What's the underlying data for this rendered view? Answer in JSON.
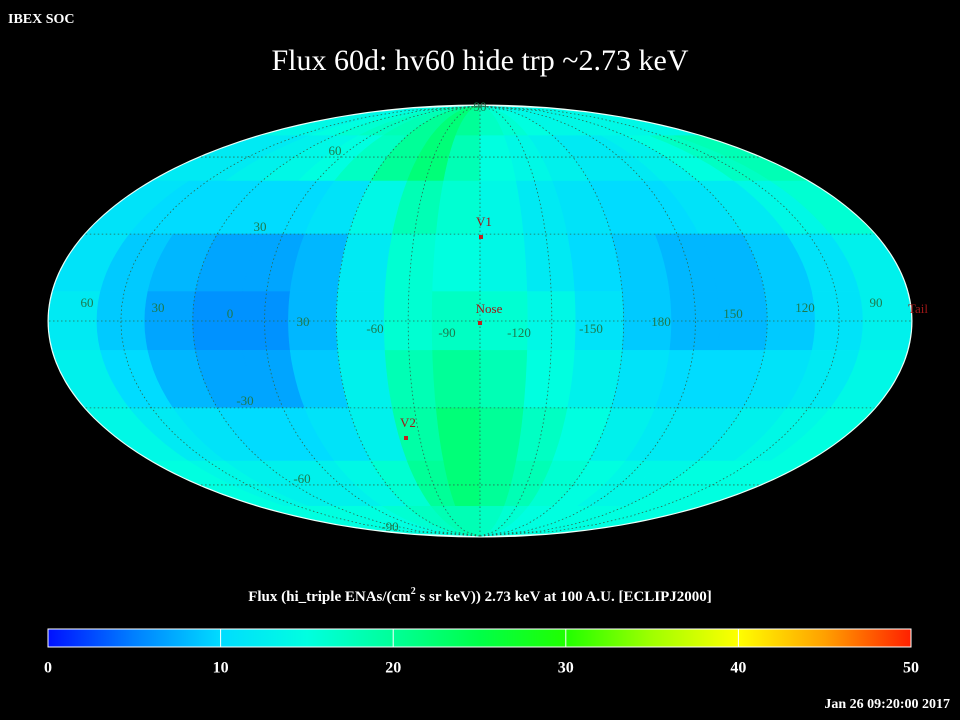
{
  "header": "IBEX SOC",
  "chart_data": {
    "type": "mollweide-map",
    "title": "Flux   60d: hv60 hide trp ~2.73 keV",
    "values": [
      [
        14,
        14,
        15,
        16,
        17,
        18,
        20,
        22,
        20,
        17,
        16,
        15,
        14,
        14,
        14,
        14,
        14,
        14
      ],
      [
        12,
        12,
        13,
        14,
        15,
        17,
        20,
        22,
        18,
        15,
        14,
        13,
        12,
        12,
        13,
        15,
        17,
        18
      ],
      [
        11,
        10,
        10,
        10,
        10,
        11,
        14,
        18,
        16,
        14,
        12,
        11,
        10,
        10,
        11,
        12,
        14,
        16
      ],
      [
        11,
        9,
        8,
        7,
        7,
        8,
        12,
        16,
        15,
        14,
        12,
        10,
        9,
        8,
        8,
        9,
        11,
        13
      ],
      [
        12,
        9,
        7,
        6,
        6,
        8,
        12,
        16,
        17,
        16,
        14,
        11,
        9,
        8,
        8,
        9,
        11,
        13
      ],
      [
        13,
        10,
        8,
        7,
        7,
        9,
        13,
        18,
        20,
        18,
        15,
        13,
        11,
        10,
        10,
        11,
        12,
        14
      ],
      [
        14,
        12,
        11,
        10,
        10,
        11,
        13,
        19,
        22,
        20,
        17,
        15,
        13,
        12,
        12,
        13,
        14,
        15
      ],
      [
        15,
        14,
        13,
        13,
        13,
        14,
        16,
        20,
        22,
        20,
        18,
        16,
        15,
        14,
        14,
        15,
        15,
        15
      ],
      [
        15,
        15,
        15,
        15,
        15,
        16,
        17,
        18,
        18,
        17,
        16,
        15,
        15,
        15,
        15,
        15,
        15,
        15
      ]
    ],
    "lat_labels": [
      "90",
      "60",
      "30",
      "-30",
      "-60",
      "-90"
    ],
    "lon_labels": [
      "60",
      "30",
      "0",
      "30",
      "-60",
      "-90",
      "-120",
      "-150",
      "180",
      "150",
      "120",
      "90"
    ],
    "markers": [
      "V1",
      "Nose",
      "V2",
      "Tail"
    ],
    "colorbar": {
      "label_pre": "Flux (hi_triple ENAs/(cm",
      "label_sup": "2",
      "label_post": " s sr keV))  2.73 keV at 100 A.U. [ECLIPJ2000]",
      "lim": [
        0,
        50
      ],
      "ticks": [
        0,
        10,
        20,
        30,
        40,
        50
      ],
      "colors": [
        "#0010ff",
        "#0080ff",
        "#00dcff",
        "#00ffe0",
        "#00ff98",
        "#00ff48",
        "#20ff00",
        "#a0ff00",
        "#ffff00",
        "#ffa000",
        "#ff2000"
      ]
    }
  },
  "footer": "Jan 26 09:20:00 2017"
}
